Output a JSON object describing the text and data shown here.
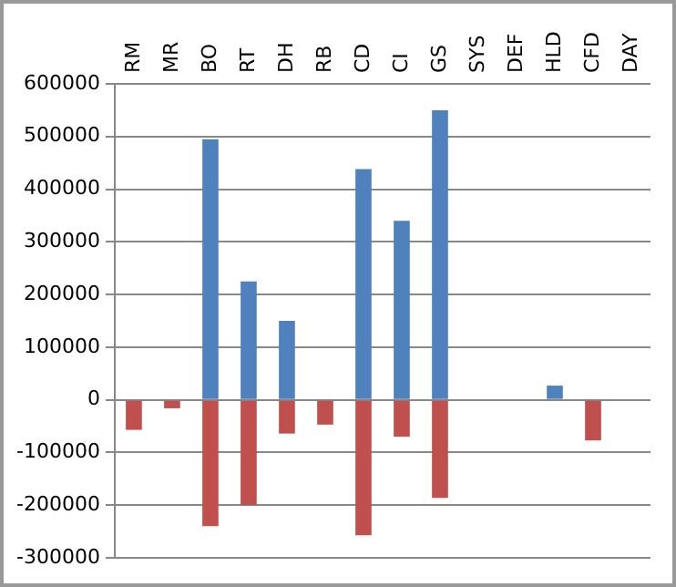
{
  "chart_data": {
    "type": "bar",
    "categories": [
      "RM",
      "MR",
      "BO",
      "RT",
      "DH",
      "RB",
      "CD",
      "CI",
      "GS",
      "SYS",
      "DEF",
      "HLD",
      "CFD",
      "DAY"
    ],
    "series": [
      {
        "color": "#4f81bd",
        "values": [
          null,
          null,
          495000,
          225000,
          150000,
          null,
          438000,
          340000,
          550000,
          null,
          null,
          27000,
          null,
          null
        ]
      },
      {
        "color": "#c0504d",
        "values": [
          -57000,
          -16000,
          -240000,
          -200000,
          -64000,
          -47000,
          -257000,
          -70000,
          -186000,
          null,
          null,
          null,
          -77000,
          null
        ]
      }
    ],
    "ylim": [
      -300000,
      600000
    ],
    "yticks": [
      -300000,
      -200000,
      -100000,
      0,
      100000,
      200000,
      300000,
      400000,
      500000,
      600000
    ],
    "grid": "y",
    "legend": false
  }
}
